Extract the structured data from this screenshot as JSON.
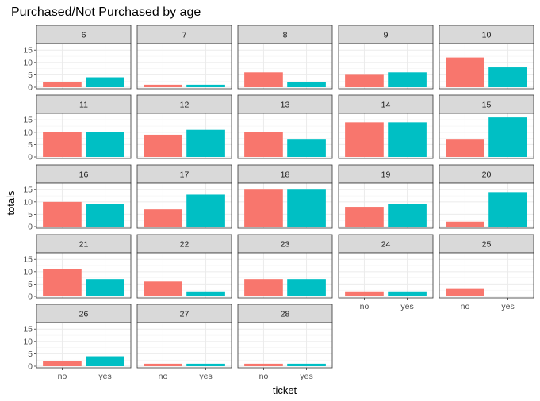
{
  "chart_data": {
    "type": "bar",
    "title": "Purchased/Not Purchased by age",
    "xlabel": "ticket",
    "ylabel": "totals",
    "categories": [
      "no",
      "yes"
    ],
    "ylim": [
      0,
      17
    ],
    "y_ticks": [
      0,
      5,
      10,
      15
    ],
    "grid": true,
    "facet_var": "age",
    "colors": {
      "no": "#F8766D",
      "yes": "#00BFC4"
    },
    "panels": [
      {
        "label": "6",
        "values": [
          2,
          4
        ]
      },
      {
        "label": "7",
        "values": [
          1,
          1
        ]
      },
      {
        "label": "8",
        "values": [
          6,
          2
        ]
      },
      {
        "label": "9",
        "values": [
          5,
          6
        ]
      },
      {
        "label": "10",
        "values": [
          12,
          8
        ]
      },
      {
        "label": "11",
        "values": [
          10,
          10
        ]
      },
      {
        "label": "12",
        "values": [
          9,
          11
        ]
      },
      {
        "label": "13",
        "values": [
          10,
          7
        ]
      },
      {
        "label": "14",
        "values": [
          14,
          14
        ]
      },
      {
        "label": "15",
        "values": [
          7,
          16
        ]
      },
      {
        "label": "16",
        "values": [
          10,
          9
        ]
      },
      {
        "label": "17",
        "values": [
          7,
          13
        ]
      },
      {
        "label": "18",
        "values": [
          15,
          15
        ]
      },
      {
        "label": "19",
        "values": [
          8,
          9
        ]
      },
      {
        "label": "20",
        "values": [
          2,
          14
        ]
      },
      {
        "label": "21",
        "values": [
          11,
          7
        ]
      },
      {
        "label": "22",
        "values": [
          6,
          2
        ]
      },
      {
        "label": "23",
        "values": [
          7,
          7
        ]
      },
      {
        "label": "24",
        "values": [
          2,
          2
        ]
      },
      {
        "label": "25",
        "values": [
          3,
          0
        ]
      },
      {
        "label": "26",
        "values": [
          2,
          4
        ]
      },
      {
        "label": "27",
        "values": [
          1,
          1
        ]
      },
      {
        "label": "28",
        "values": [
          1,
          1
        ]
      }
    ]
  }
}
